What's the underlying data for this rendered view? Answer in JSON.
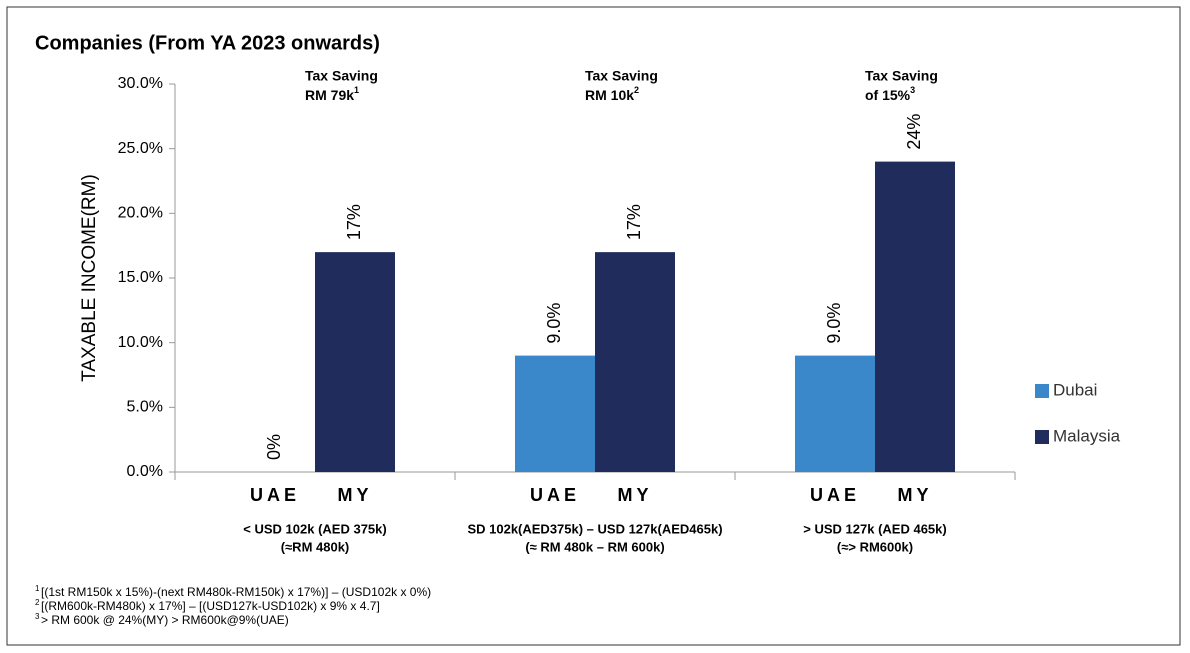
{
  "chart_data": {
    "type": "bar",
    "title": "Companies (From YA 2023 onwards)",
    "y_label": "TAXABLE INCOME(RM)",
    "categories": [
      [
        "< USD 102k (AED 375k)",
        "(≈RM 480k)"
      ],
      [
        "SD 102k(AED375k) – USD 127k(AED465k)",
        "(≈ RM 480k – RM 600k)"
      ],
      [
        "> USD 127k (AED 465k)",
        "(≈> RM600k)"
      ]
    ],
    "sub_categories": [
      "UAE",
      "MY"
    ],
    "series": [
      {
        "name": "Dubai",
        "color": "#3a88c9",
        "values": [
          0,
          9,
          9
        ],
        "value_labels": [
          "0%",
          "9.0%",
          "9.0%"
        ]
      },
      {
        "name": "Malaysia",
        "color": "#1f2c5c",
        "values": [
          17,
          17,
          24
        ],
        "value_labels": [
          "17%",
          "17%",
          "24%"
        ]
      }
    ],
    "ylim": [
      0,
      30
    ],
    "yticks": [
      {
        "value": 0,
        "label": "0.0%"
      },
      {
        "value": 5,
        "label": "5.0%"
      },
      {
        "value": 10,
        "label": "10.0%"
      },
      {
        "value": 15,
        "label": "15.0%"
      },
      {
        "value": 20,
        "label": "20.0%"
      },
      {
        "value": 25,
        "label": "25.0%"
      },
      {
        "value": 30,
        "label": "30.0%"
      }
    ],
    "legend": "right",
    "annotations": [
      {
        "line1": "Tax Saving",
        "line2": "RM 79k",
        "sup": "1"
      },
      {
        "line1": "Tax Saving",
        "line2": "RM 10k",
        "sup": "2"
      },
      {
        "line1": "Tax Saving",
        "line2": "of 15%",
        "sup": "3"
      }
    ],
    "footnotes": [
      {
        "sup": "1",
        "text": "[(1st RM150k x 15%)-(next RM480k-RM150k) x 17%)] – (USD102k x 0%)"
      },
      {
        "sup": "2",
        "text": "[(RM600k-RM480k) x 17%] – [(USD127k-USD102k) x 9% x 4.7]"
      },
      {
        "sup": "3",
        "text": "> RM 600k @ 24%(MY) > RM600k@9%(UAE)"
      }
    ]
  }
}
